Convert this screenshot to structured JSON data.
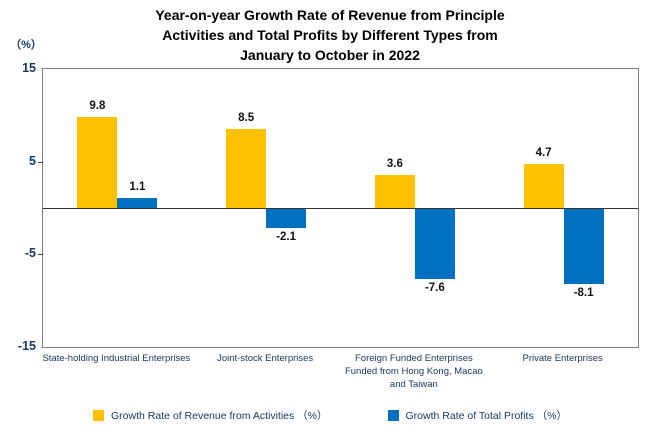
{
  "chart_data": {
    "type": "bar",
    "title": "Year-on-year Growth Rate of Revenue from Principle Activities and Total Profits by Different Types from January to October in 2022",
    "title_lines": [
      "Year-on-year Growth Rate of Revenue from Principle",
      "Activities and Total Profits by Different Types from",
      "January to October in 2022"
    ],
    "y_axis_unit_label": "（%）",
    "categories": [
      "State-holding Industrial Enterprises",
      "Joint-stock Enterprises",
      "Foreign Funded Enterprises Funded from Hong Kong, Macao and Taiwan",
      "Private Enterprises"
    ],
    "series": [
      {
        "name": "Growth Rate of Revenue from Activities （%）",
        "color": "#FFC000",
        "values": [
          9.8,
          8.5,
          3.6,
          4.7
        ]
      },
      {
        "name": "Growth Rate of Total Profits （%）",
        "color": "#0070C0",
        "values": [
          1.1,
          -2.1,
          -7.6,
          -8.1
        ]
      }
    ],
    "ylim": [
      -15,
      15
    ],
    "yticks": [
      15,
      5,
      -5,
      -15
    ],
    "grid": false,
    "legend_position": "bottom",
    "colors": {
      "revenue_bar": "#FFC000",
      "profit_bar": "#0070C0",
      "axis_text": "#17375E",
      "title_text": "#000000",
      "plot_border": "#7f7f7f"
    }
  }
}
